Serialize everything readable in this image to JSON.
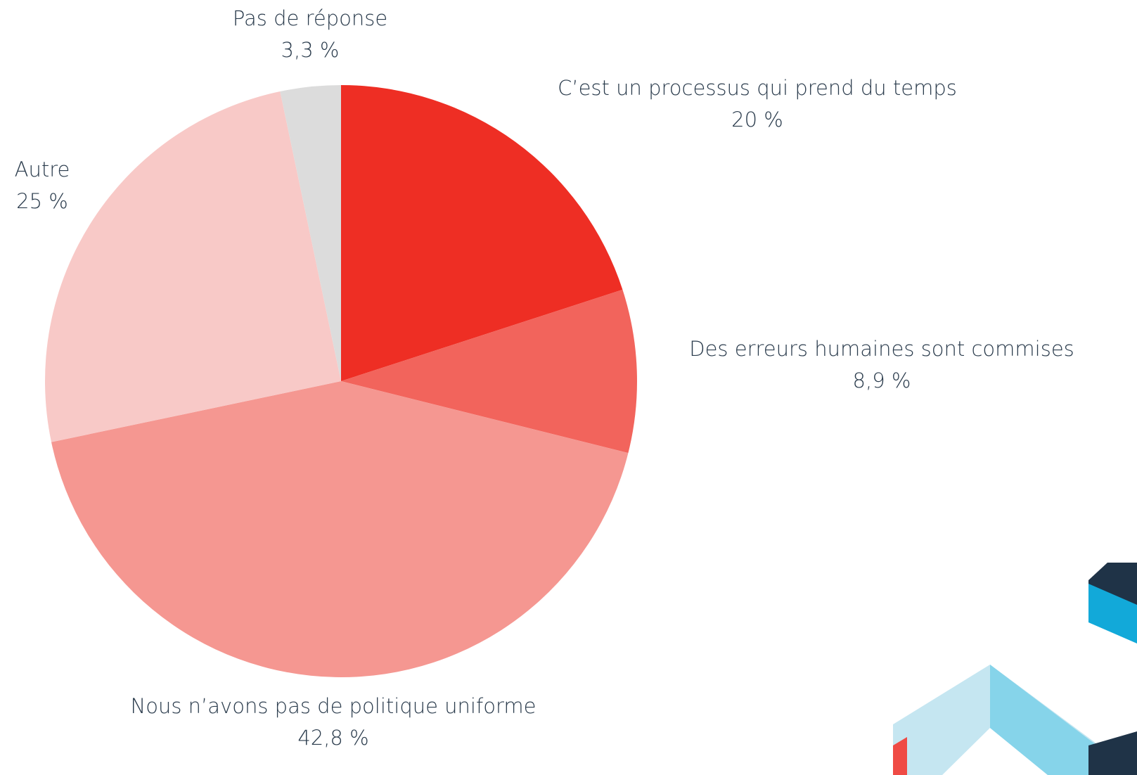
{
  "chart_data": {
    "type": "pie",
    "categories": [
      "C’est un processus qui prend du temps",
      "Des erreurs humaines sont commises",
      "Nous n’avons pas de politique uniforme",
      "Autre",
      "Pas de réponse"
    ],
    "values": [
      20,
      8.9,
      42.8,
      25,
      3.3
    ],
    "value_labels": [
      "20 %",
      "8,9 %",
      "42,8 %",
      "25 %",
      "3,3 %"
    ],
    "colors": [
      "#ee2e24",
      "#f2645c",
      "#f59791",
      "#f8c9c7",
      "#dcdcdc"
    ]
  }
}
